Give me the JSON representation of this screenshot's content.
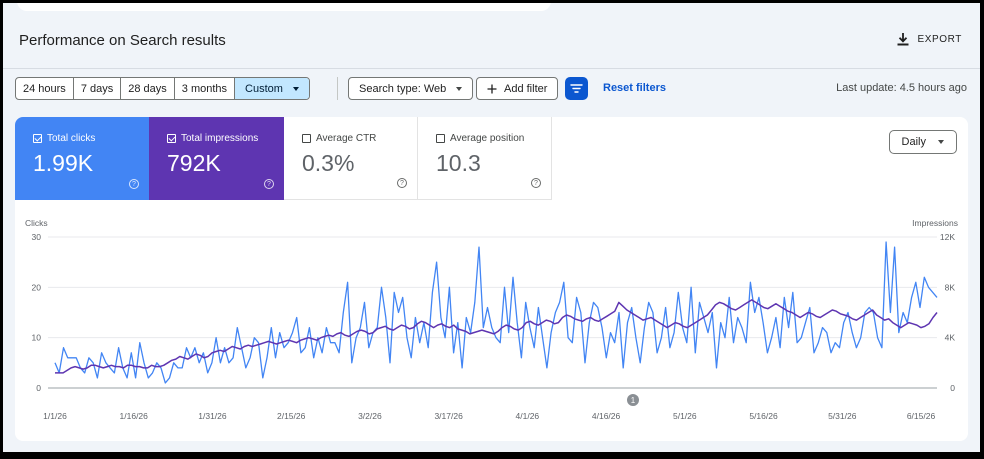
{
  "header": {
    "title": "Performance on Search results",
    "export_label": "EXPORT"
  },
  "filters": {
    "ranges": [
      "24 hours",
      "7 days",
      "28 days",
      "3 months",
      "Custom"
    ],
    "active_range": "Custom",
    "search_type": "Search type: Web",
    "add_filter": "Add filter",
    "reset": "Reset filters",
    "last_update": "Last update: 4.5 hours ago"
  },
  "metrics": {
    "clicks": {
      "label": "Total clicks",
      "value": "1.99K",
      "checked": true
    },
    "impressions": {
      "label": "Total impressions",
      "value": "792K",
      "checked": true
    },
    "ctr": {
      "label": "Average CTR",
      "value": "0.3%",
      "checked": false
    },
    "position": {
      "label": "Average position",
      "value": "10.3",
      "checked": false
    }
  },
  "granularity": "Daily",
  "annotation_marker": "1",
  "colors": {
    "clicks": "#4285f4",
    "impressions": "#5e35b1",
    "accent": "#0b57d0"
  },
  "chart_data": {
    "type": "line",
    "left_axis": {
      "label": "Clicks",
      "ticks": [
        0,
        10,
        20,
        30
      ],
      "range": [
        0,
        30
      ]
    },
    "right_axis": {
      "label": "Impressions",
      "ticks": [
        "0",
        "4K",
        "8K",
        "12K"
      ],
      "range": [
        0,
        12000
      ]
    },
    "x_tick_labels": [
      "1/1/26",
      "1/16/26",
      "1/31/26",
      "2/15/26",
      "3/2/26",
      "3/17/26",
      "4/1/26",
      "4/16/26",
      "5/1/26",
      "5/16/26",
      "5/31/26",
      "6/15/26"
    ],
    "grid": "horizontal",
    "series": [
      {
        "name": "Clicks",
        "axis": "left",
        "values": [
          5,
          3,
          8,
          6,
          6,
          6,
          4,
          3,
          6,
          5,
          2,
          7,
          5,
          4,
          3,
          8,
          4,
          2,
          7,
          2,
          9,
          5,
          2,
          3,
          5,
          4,
          1,
          2,
          5,
          4,
          4,
          8,
          6,
          8,
          5,
          7,
          3,
          5,
          10,
          5,
          8,
          5,
          6,
          12,
          8,
          4,
          6,
          10,
          9,
          2,
          6,
          12,
          6,
          11,
          8,
          9,
          11,
          14,
          7,
          8,
          12,
          6,
          10,
          7,
          12,
          9,
          9,
          7,
          15,
          21,
          5,
          10,
          12,
          17,
          8,
          11,
          12,
          20,
          14,
          5,
          19,
          15,
          18,
          10,
          6,
          14,
          9,
          13,
          8,
          19,
          25,
          14,
          10,
          20,
          7,
          13,
          4,
          14,
          11,
          17,
          28,
          12,
          16,
          12,
          10,
          9,
          20,
          11,
          22,
          13,
          6,
          17,
          12,
          8,
          16,
          10,
          4,
          11,
          15,
          17,
          21,
          10,
          9,
          18,
          15,
          5,
          13,
          17,
          16,
          12,
          6,
          11,
          9,
          15,
          4,
          13,
          16,
          10,
          5,
          12,
          17,
          15,
          7,
          10,
          16,
          8,
          11,
          19,
          12,
          9,
          20,
          7,
          17,
          14,
          11,
          15,
          4,
          13,
          10,
          18,
          9,
          14,
          12,
          9,
          21,
          15,
          18,
          13,
          7,
          10,
          14,
          8,
          18,
          12,
          19,
          9,
          10,
          13,
          16,
          7,
          9,
          12,
          11,
          7,
          9,
          8,
          13,
          15,
          11,
          8,
          10,
          15,
          16,
          15,
          10,
          8,
          29,
          15,
          28,
          11,
          15,
          13,
          18,
          21,
          16,
          22,
          20,
          19,
          18
        ],
        "display_note": "approximate daily clicks read from the plotted line"
      },
      {
        "name": "Impressions",
        "axis": "right",
        "values": [
          1200,
          1200,
          1200,
          1400,
          1600,
          1700,
          1600,
          1500,
          1600,
          1800,
          1800,
          1700,
          1600,
          1700,
          1800,
          1700,
          1700,
          1600,
          1800,
          1800,
          1700,
          1700,
          1600,
          1600,
          1800,
          1700,
          1700,
          1800,
          2000,
          2200,
          2300,
          2500,
          2400,
          2300,
          2500,
          2700,
          2600,
          2400,
          2500,
          2800,
          2900,
          3000,
          2900,
          3100,
          3300,
          3200,
          3100,
          3300,
          3400,
          3300,
          3400,
          3500,
          3600,
          3700,
          3600,
          3500,
          3600,
          3700,
          3800,
          3700,
          3600,
          3800,
          3900,
          4000,
          3900,
          3800,
          4000,
          4100,
          4200,
          4100,
          4300,
          4400,
          4200,
          4100,
          4300,
          4500,
          4600,
          4500,
          4300,
          4400,
          4700,
          4800,
          4900,
          4700,
          4600,
          4800,
          5000,
          4900,
          4700,
          4800,
          5100,
          5300,
          5200,
          5000,
          4800,
          5000,
          5100,
          4900,
          4800,
          5000,
          4700,
          4600,
          4500,
          4300,
          4400,
          4500,
          4600,
          4500,
          4400,
          4300,
          4500,
          4800,
          5000,
          4900,
          4700,
          4600,
          4800,
          5200,
          5300,
          5100,
          5000,
          5200,
          5400,
          5300,
          5100,
          5200,
          5600,
          5800,
          5700,
          5500,
          5400,
          5300,
          5500,
          5600,
          5400,
          5300,
          5500,
          5700,
          5900,
          6100,
          6800,
          6500,
          6200,
          6000,
          5800,
          5600,
          5400,
          5500,
          5600,
          5400,
          5200,
          5000,
          4800,
          5000,
          5200,
          5100,
          4900,
          4800,
          5000,
          5200,
          5400,
          5600,
          5800,
          6200,
          6600,
          6800,
          6700,
          6500,
          6300,
          6200,
          6400,
          6600,
          6800,
          7000,
          6800,
          6600,
          6400,
          6300,
          6500,
          6700,
          6500,
          6300,
          6100,
          6000,
          5800,
          5600,
          5800,
          6000,
          5900,
          5700,
          5600,
          5800,
          6000,
          6200,
          6100,
          5900,
          5800,
          5700,
          5500,
          5400,
          5600,
          5800,
          6000,
          6200,
          5800,
          5600,
          5400,
          5500,
          5200,
          5000,
          4800,
          5000,
          5200,
          5100,
          5000,
          4800,
          4900,
          5100,
          5600,
          6000
        ]
      }
    ]
  }
}
